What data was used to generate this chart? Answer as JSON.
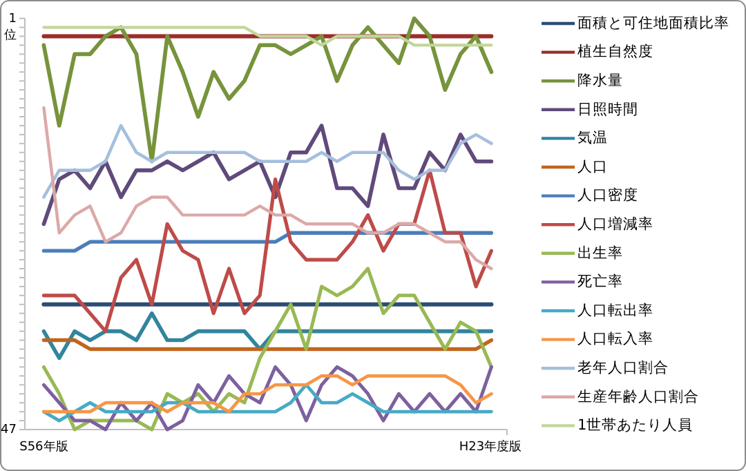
{
  "chart_data": {
    "type": "line",
    "ylabel": "位",
    "categories": [
      "S56年版",
      null,
      null,
      null,
      null,
      null,
      null,
      null,
      null,
      null,
      null,
      null,
      null,
      null,
      null,
      null,
      null,
      null,
      null,
      null,
      null,
      null,
      null,
      null,
      null,
      null,
      null,
      null,
      null,
      "H23年度版"
    ],
    "ylim": [
      47,
      1
    ],
    "yticks": [
      {
        "value": 1,
        "label": "1"
      },
      {
        "value": 2,
        "label": null
      },
      {
        "value": 3,
        "label": null
      },
      {
        "value": 4,
        "label": null
      },
      {
        "value": 5,
        "label": null
      },
      {
        "value": 6,
        "label": null
      },
      {
        "value": 7,
        "label": null
      },
      {
        "value": 8,
        "label": null
      },
      {
        "value": 9,
        "label": null
      },
      {
        "value": 10,
        "label": null
      },
      {
        "value": 11,
        "label": null
      },
      {
        "value": 12,
        "label": null
      },
      {
        "value": 13,
        "label": null
      },
      {
        "value": 14,
        "label": null
      },
      {
        "value": 15,
        "label": null
      },
      {
        "value": 16,
        "label": null
      },
      {
        "value": 17,
        "label": null
      },
      {
        "value": 18,
        "label": null
      },
      {
        "value": 19,
        "label": null
      },
      {
        "value": 20,
        "label": null
      },
      {
        "value": 21,
        "label": null
      },
      {
        "value": 22,
        "label": null
      },
      {
        "value": 23,
        "label": null
      },
      {
        "value": 24,
        "label": null
      },
      {
        "value": 25,
        "label": null
      },
      {
        "value": 26,
        "label": null
      },
      {
        "value": 27,
        "label": null
      },
      {
        "value": 28,
        "label": null
      },
      {
        "value": 29,
        "label": null
      },
      {
        "value": 30,
        "label": null
      },
      {
        "value": 31,
        "label": null
      },
      {
        "value": 32,
        "label": null
      },
      {
        "value": 33,
        "label": null
      },
      {
        "value": 34,
        "label": null
      },
      {
        "value": 35,
        "label": null
      },
      {
        "value": 36,
        "label": null
      },
      {
        "value": 37,
        "label": null
      },
      {
        "value": 38,
        "label": null
      },
      {
        "value": 39,
        "label": null
      },
      {
        "value": 40,
        "label": null
      },
      {
        "value": 41,
        "label": null
      },
      {
        "value": 42,
        "label": null
      },
      {
        "value": 43,
        "label": null
      },
      {
        "value": 44,
        "label": null
      },
      {
        "value": 45,
        "label": null
      },
      {
        "value": 46,
        "label": null
      },
      {
        "value": 47,
        "label": "47"
      }
    ],
    "grid": false,
    "legend": "right",
    "marker": "none",
    "line_style": "solid",
    "series": [
      {
        "name": "面積と可住地面積比率",
        "color": "#2c4d75",
        "values": [
          33,
          33,
          33,
          33,
          33,
          33,
          33,
          33,
          33,
          33,
          33,
          33,
          33,
          33,
          33,
          33,
          33,
          33,
          33,
          33,
          33,
          33,
          33,
          33,
          33,
          33,
          33,
          33,
          33,
          33
        ]
      },
      {
        "name": "植生自然度",
        "color": "#9b2d2a",
        "values": [
          3,
          3,
          3,
          3,
          3,
          3,
          3,
          3,
          3,
          3,
          3,
          3,
          3,
          3,
          3,
          3,
          3,
          3,
          3,
          3,
          3,
          3,
          3,
          3,
          3,
          3,
          3,
          3,
          3,
          3
        ]
      },
      {
        "name": "降水量",
        "color": "#77933c",
        "values": [
          4,
          13,
          5,
          5,
          3,
          2,
          5,
          17,
          3,
          7,
          12,
          7,
          10,
          8,
          4,
          4,
          5,
          4,
          3,
          8,
          4,
          2,
          4,
          6,
          1,
          3,
          9,
          5,
          3,
          7
        ]
      },
      {
        "name": "日照時間",
        "color": "#604a7b",
        "values": [
          24,
          19,
          18,
          20,
          17,
          21,
          18,
          18,
          17,
          18,
          17,
          16,
          19,
          18,
          17,
          21,
          16,
          16,
          13,
          20,
          20,
          22,
          14,
          20,
          20,
          16,
          18,
          14,
          17,
          17
        ]
      },
      {
        "name": "気温",
        "color": "#31859c",
        "values": [
          36,
          39,
          36,
          37,
          36,
          36,
          37,
          34,
          37,
          37,
          36,
          36,
          36,
          36,
          38,
          36,
          36,
          36,
          36,
          36,
          36,
          36,
          36,
          36,
          36,
          36,
          36,
          36,
          36,
          36
        ]
      },
      {
        "name": "人口",
        "color": "#c0651e",
        "values": [
          37,
          37,
          37,
          38,
          38,
          38,
          38,
          38,
          38,
          38,
          38,
          38,
          38,
          38,
          38,
          38,
          38,
          38,
          38,
          38,
          38,
          38,
          38,
          38,
          38,
          38,
          38,
          38,
          38,
          37
        ]
      },
      {
        "name": "人口密度",
        "color": "#4a7ebb",
        "values": [
          27,
          27,
          27,
          26,
          26,
          26,
          26,
          26,
          26,
          26,
          26,
          26,
          26,
          26,
          26,
          26,
          25,
          25,
          25,
          25,
          25,
          25,
          25,
          25,
          25,
          25,
          25,
          25,
          25,
          25
        ]
      },
      {
        "name": "人口増減率",
        "color": "#be4b48",
        "values": [
          32,
          32,
          32,
          34,
          36,
          30,
          28,
          33,
          24,
          27,
          28,
          34,
          29,
          34,
          32,
          19,
          26,
          28,
          28,
          28,
          26,
          23,
          27,
          24,
          24,
          18,
          25,
          25,
          31,
          27
        ]
      },
      {
        "name": "出生率",
        "color": "#98b954",
        "values": [
          40,
          43,
          47,
          46,
          46,
          46,
          46,
          47,
          43,
          44,
          43,
          45,
          43,
          44,
          39,
          36,
          33,
          38,
          31,
          32,
          31,
          29,
          34,
          32,
          32,
          35,
          38,
          35,
          36,
          40
        ]
      },
      {
        "name": "死亡率",
        "color": "#7d60a0",
        "values": [
          42,
          44,
          46,
          46,
          47,
          44,
          46,
          44,
          47,
          46,
          42,
          44,
          41,
          43,
          44,
          40,
          42,
          46,
          42,
          40,
          41,
          43,
          46,
          43,
          45,
          43,
          45,
          43,
          45,
          40
        ]
      },
      {
        "name": "人口転出率",
        "color": "#46aac5",
        "values": [
          45,
          46,
          45,
          44,
          45,
          45,
          45,
          45,
          44,
          44,
          45,
          45,
          45,
          45,
          45,
          45,
          44,
          42,
          44,
          44,
          43,
          44,
          45,
          45,
          45,
          45,
          45,
          45,
          45,
          45
        ]
      },
      {
        "name": "人口転入率",
        "color": "#f79646",
        "values": [
          45,
          45,
          45,
          45,
          44,
          44,
          44,
          44,
          45,
          44,
          44,
          44,
          45,
          43,
          43,
          42,
          42,
          42,
          41,
          41,
          42,
          41,
          41,
          41,
          41,
          41,
          41,
          42,
          44,
          43
        ]
      },
      {
        "name": "老年人口割合",
        "color": "#a5bfdd",
        "values": [
          21,
          18,
          18,
          18,
          17,
          13,
          16,
          17,
          16,
          16,
          16,
          16,
          16,
          16,
          17,
          17,
          17,
          17,
          16,
          17,
          16,
          16,
          16,
          18,
          19,
          18,
          18,
          15,
          14,
          15
        ]
      },
      {
        "name": "生産年齢人口割合",
        "color": "#dba9a8",
        "values": [
          11,
          25,
          23,
          22,
          26,
          25,
          22,
          21,
          21,
          23,
          23,
          23,
          23,
          23,
          22,
          23,
          23,
          24,
          24,
          24,
          24,
          25,
          25,
          24,
          24,
          25,
          26,
          26,
          28,
          29
        ]
      },
      {
        "name": "1世帯あたり人員",
        "color": "#c3d69b",
        "values": [
          2,
          2,
          2,
          2,
          2,
          2,
          2,
          2,
          2,
          2,
          2,
          2,
          2,
          2,
          3,
          3,
          3,
          3,
          4,
          3,
          3,
          3,
          3,
          3,
          4,
          4,
          4,
          4,
          4,
          4
        ]
      }
    ]
  }
}
